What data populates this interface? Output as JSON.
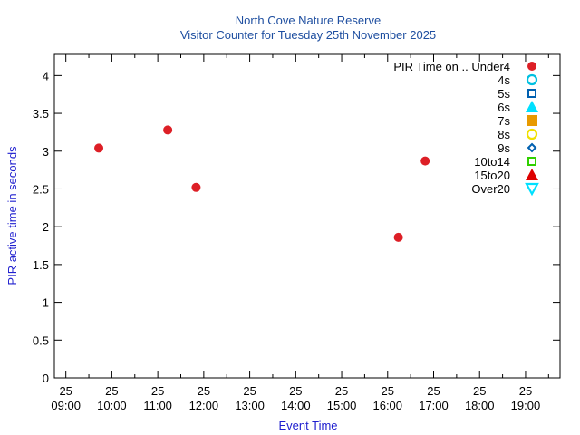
{
  "chart_data": {
    "type": "scatter",
    "title": "North Cove Nature Reserve",
    "subtitle": "Visitor Counter for Tuesday 25th November 2025",
    "xlabel": "Event Time",
    "ylabel": "PIR active time in seconds",
    "xlim": [
      "2025-11-25 08:45",
      "2025-11-25 19:45"
    ],
    "ylim": [
      0,
      4.28
    ],
    "x_ticks": [
      {
        "date": "25",
        "time": "09:00"
      },
      {
        "date": "25",
        "time": "10:00"
      },
      {
        "date": "25",
        "time": "11:00"
      },
      {
        "date": "25",
        "time": "12:00"
      },
      {
        "date": "25",
        "time": "13:00"
      },
      {
        "date": "25",
        "time": "14:00"
      },
      {
        "date": "25",
        "time": "15:00"
      },
      {
        "date": "25",
        "time": "16:00"
      },
      {
        "date": "25",
        "time": "17:00"
      },
      {
        "date": "25",
        "time": "18:00"
      },
      {
        "date": "25",
        "time": "19:00"
      }
    ],
    "y_ticks": [
      "0",
      "0.5",
      "1",
      "1.5",
      "2",
      "2.5",
      "3",
      "3.5",
      "4"
    ],
    "grid": false,
    "legend_title": "PIR Time on ..",
    "legend_position": "top-right",
    "series": [
      {
        "name": "Under4",
        "marker": "circle-filled",
        "color": "#dd1f26",
        "points": [
          {
            "x": "2025-11-25 09:43",
            "y": 3.04
          },
          {
            "x": "2025-11-25 11:13",
            "y": 3.28
          },
          {
            "x": "2025-11-25 11:50",
            "y": 2.52
          },
          {
            "x": "2025-11-25 16:14",
            "y": 1.86
          },
          {
            "x": "2025-11-25 16:49",
            "y": 2.87
          }
        ]
      },
      {
        "name": "4s",
        "marker": "circle-open",
        "color": "#00c0e0",
        "points": []
      },
      {
        "name": "5s",
        "marker": "square-open",
        "color": "#0060b0",
        "points": []
      },
      {
        "name": "6s",
        "marker": "triangle-filled",
        "color": "#00e0ff",
        "points": []
      },
      {
        "name": "7s",
        "marker": "square-filled",
        "color": "#e89a00",
        "points": []
      },
      {
        "name": "8s",
        "marker": "circle-open",
        "color": "#f0e000",
        "points": []
      },
      {
        "name": "9s",
        "marker": "diamond-open",
        "color": "#0060b0",
        "points": []
      },
      {
        "name": "10to14",
        "marker": "square-open",
        "color": "#30d000",
        "points": []
      },
      {
        "name": "15to20",
        "marker": "triangle-filled",
        "color": "#dd0000",
        "points": []
      },
      {
        "name": "Over20",
        "marker": "triangle-down-open",
        "color": "#00e0ff",
        "points": []
      }
    ]
  }
}
